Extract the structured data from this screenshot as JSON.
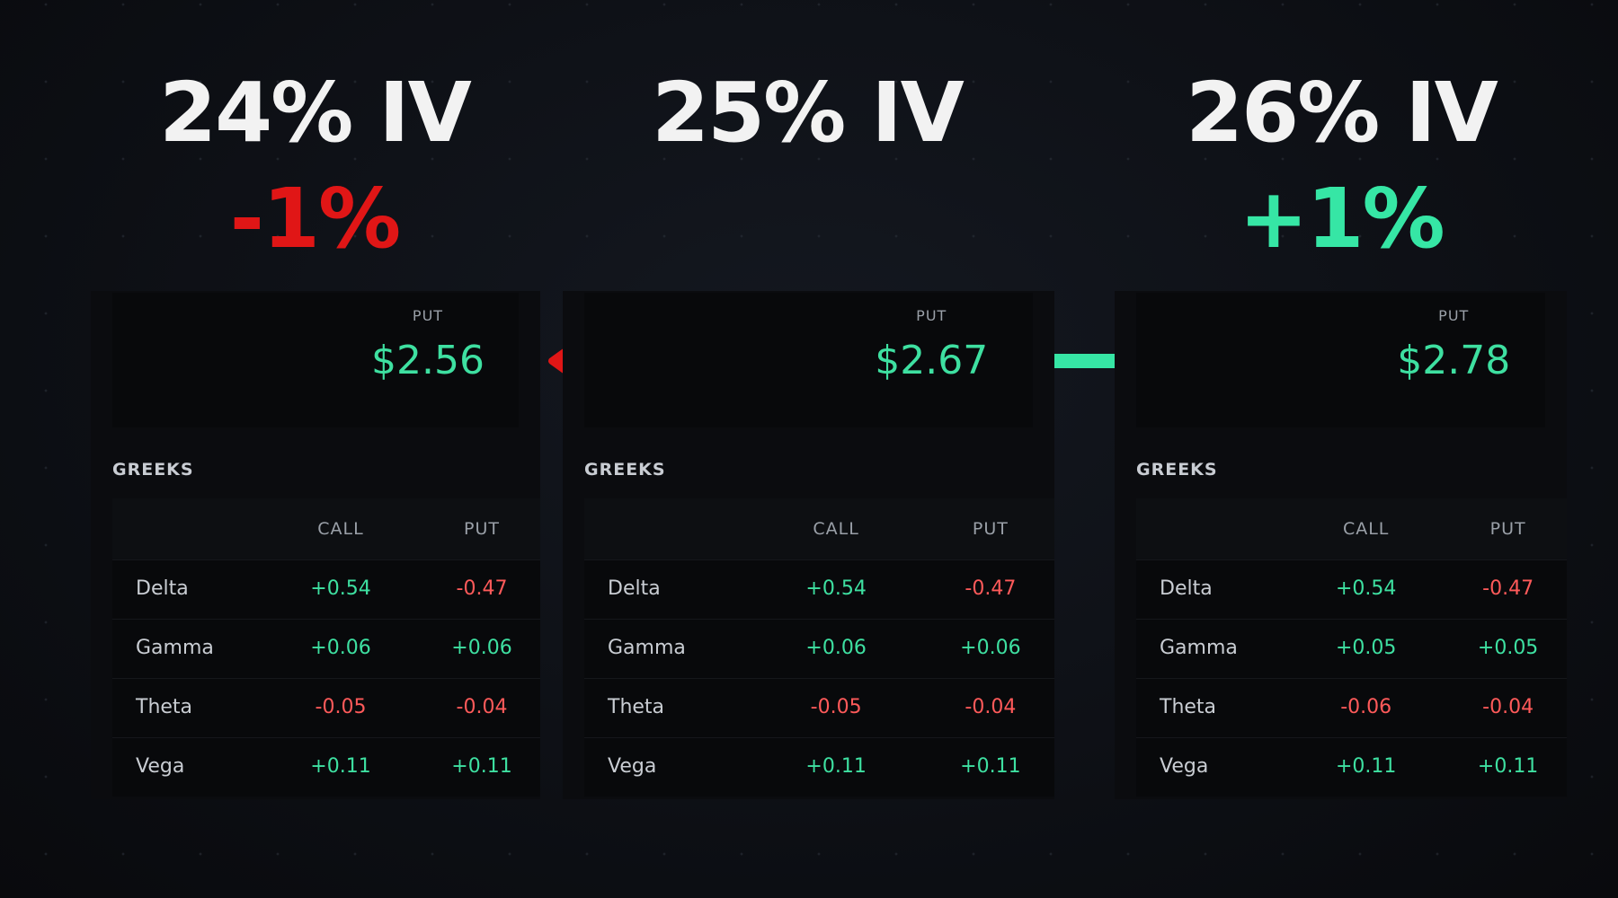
{
  "panels": [
    {
      "title": "24% IV",
      "change": "-1%",
      "put_label": "PUT",
      "put_price": "$2.56",
      "greeks_label": "GREEKS",
      "headers": [
        "CALL",
        "PUT"
      ],
      "rows": [
        [
          "Delta",
          "+0.54",
          "-0.47"
        ],
        [
          "Gamma",
          "+0.06",
          "+0.06"
        ],
        [
          "Theta",
          "-0.05",
          "-0.04"
        ],
        [
          "Vega",
          "+0.11",
          "+0.11"
        ]
      ]
    },
    {
      "title": "25% IV",
      "put_label": "PUT",
      "put_price": "$2.67",
      "greeks_label": "GREEKS",
      "headers": [
        "CALL",
        "PUT"
      ],
      "rows": [
        [
          "Delta",
          "+0.54",
          "-0.47"
        ],
        [
          "Gamma",
          "+0.06",
          "+0.06"
        ],
        [
          "Theta",
          "-0.05",
          "-0.04"
        ],
        [
          "Vega",
          "+0.11",
          "+0.11"
        ]
      ]
    },
    {
      "title": "26% IV",
      "change": "+1%",
      "put_label": "PUT",
      "put_price": "$2.78",
      "greeks_label": "GREEKS",
      "headers": [
        "CALL",
        "PUT"
      ],
      "rows": [
        [
          "Delta",
          "+0.54",
          "-0.47"
        ],
        [
          "Gamma",
          "+0.05",
          "+0.05"
        ],
        [
          "Theta",
          "-0.06",
          "-0.04"
        ],
        [
          "Vega",
          "+0.11",
          "+0.11"
        ]
      ]
    }
  ]
}
